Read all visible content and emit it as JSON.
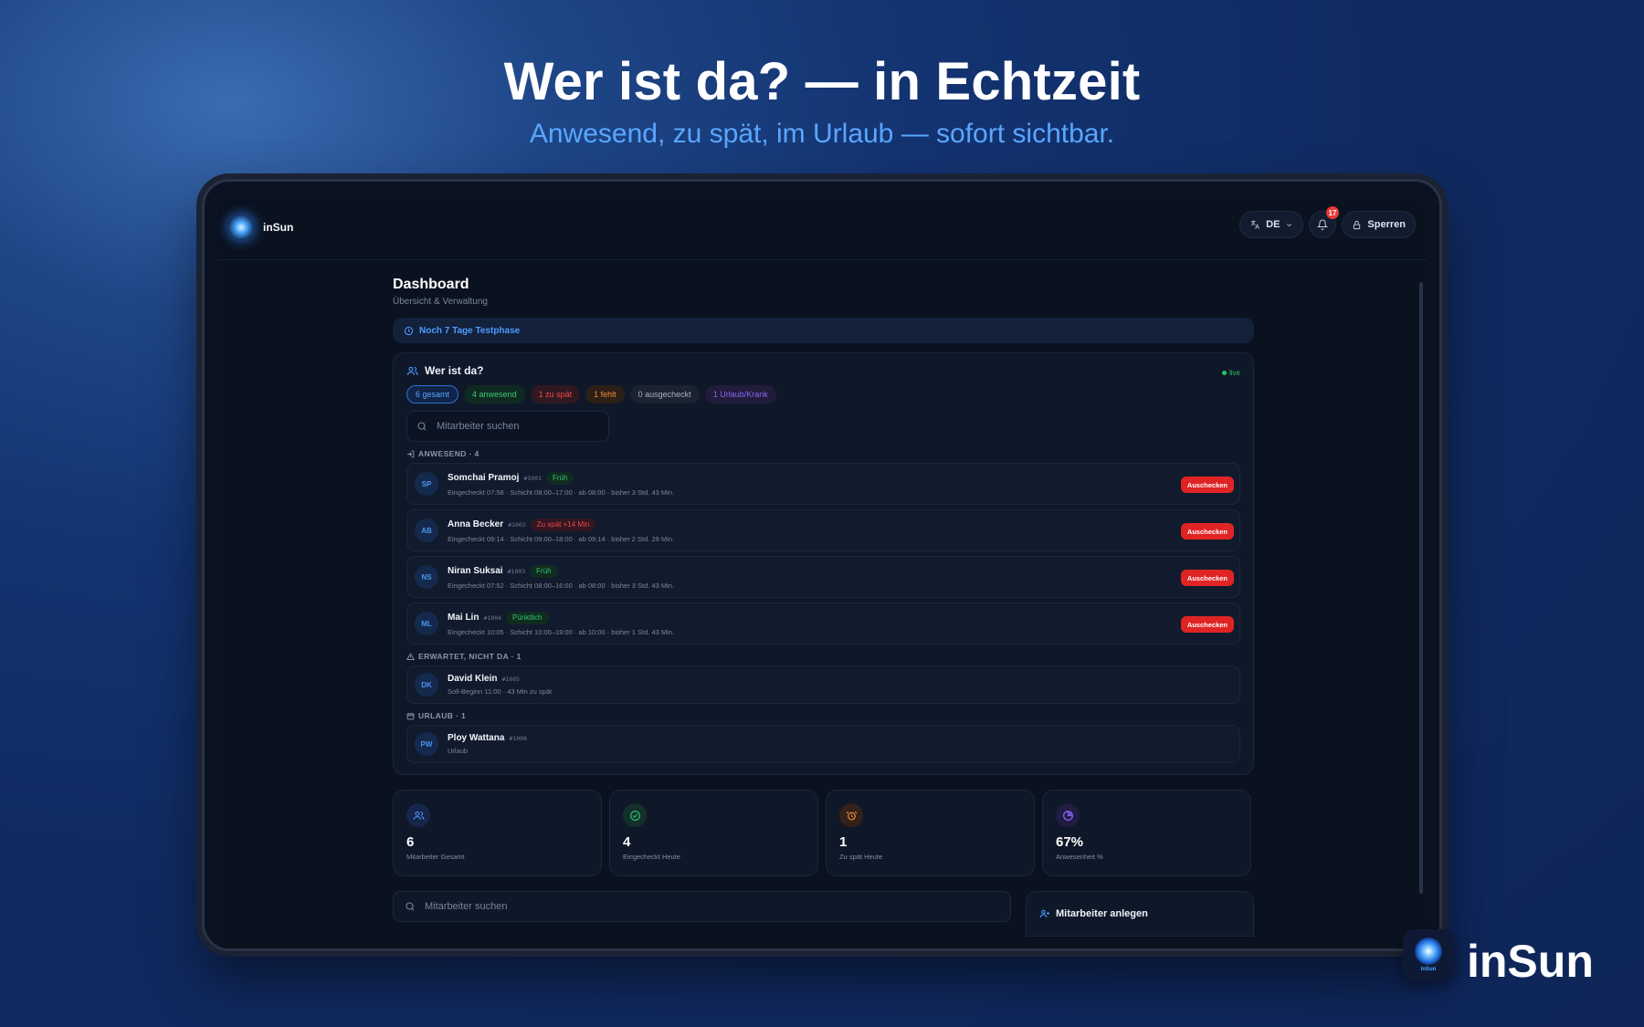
{
  "hero": {
    "title": "Wer ist da? — in Echtzeit",
    "subtitle": "Anwesend, zu spät, im Urlaub — sofort sichtbar."
  },
  "app": {
    "name": "inSun",
    "language": "DE",
    "notifications": "17",
    "lock_label": "Sperren"
  },
  "page": {
    "title": "Dashboard",
    "subtitle": "Übersicht & Verwaltung",
    "trial_text": "Noch 7 Tage Testphase"
  },
  "who": {
    "title": "Wer ist da?",
    "live": "live",
    "chips": {
      "total": "6 gesamt",
      "present": "4 anwesend",
      "late": "1 zu spät",
      "missing": "1 fehlt",
      "checked_out": "0 ausgecheckt",
      "leave": "1 Urlaub/Krank"
    },
    "search_placeholder": "Mitarbeiter suchen",
    "present_label": "ANWESEND · 4",
    "expected_label": "ERWARTET, NICHT DA · 1",
    "leave_label": "URLAUB · 1",
    "checkout_label": "Auschecken",
    "present": [
      {
        "initials": "SP",
        "name": "Somchai Pramoj",
        "id": "#1001",
        "tag": "Früh",
        "detail": "Eingecheckt 07:58 · Schicht 08:00–17:00 · ab 08:00 · bisher 3 Std. 43 Min."
      },
      {
        "initials": "AB",
        "name": "Anna Becker",
        "id": "#1002",
        "tag": "Zu spät +14 Min",
        "detail": "Eingecheckt 09:14 · Schicht 09:00–18:00 · ab 09:14 · bisher 2 Std. 29 Min."
      },
      {
        "initials": "NS",
        "name": "Niran Suksai",
        "id": "#1003",
        "tag": "Früh",
        "detail": "Eingecheckt 07:52 · Schicht 08:00–16:00 · ab 08:00 · bisher 3 Std. 43 Min."
      },
      {
        "initials": "ML",
        "name": "Mai Lin",
        "id": "#1004",
        "tag": "Pünktlich",
        "detail": "Eingecheckt 10:05 · Schicht 10:00–19:00 · ab 10:00 · bisher 1 Std. 43 Min."
      }
    ],
    "expected": [
      {
        "initials": "DK",
        "name": "David Klein",
        "id": "#1005",
        "detail": "Soll-Beginn 11:00 · 43 Min zu spät"
      }
    ],
    "leave": [
      {
        "initials": "PW",
        "name": "Ploy Wattana",
        "id": "#1006",
        "detail": "Urlaub"
      }
    ]
  },
  "stats": [
    {
      "value": "6",
      "label": "Mitarbeiter Gesamt"
    },
    {
      "value": "4",
      "label": "Eingecheckt Heute"
    },
    {
      "value": "1",
      "label": "Zu spät Heute"
    },
    {
      "value": "67%",
      "label": "Anwesenheit %"
    }
  ],
  "bottom": {
    "search_placeholder": "Mitarbeiter suchen",
    "add_employee": "Mitarbeiter anlegen"
  },
  "colors": {
    "accent": "#4d9bff",
    "present": "#3ec878",
    "late": "#ef4b4b",
    "missing": "#f08a35",
    "leave": "#8a67f0",
    "checkout_button": "#e02424"
  },
  "icons": {
    "users": "users-icon",
    "check": "check-circle-icon",
    "alarm": "alarm-icon",
    "pie": "pie-chart-icon",
    "search": "search-icon",
    "bell": "bell-icon",
    "lock": "lock-icon",
    "clock": "clock-icon"
  }
}
